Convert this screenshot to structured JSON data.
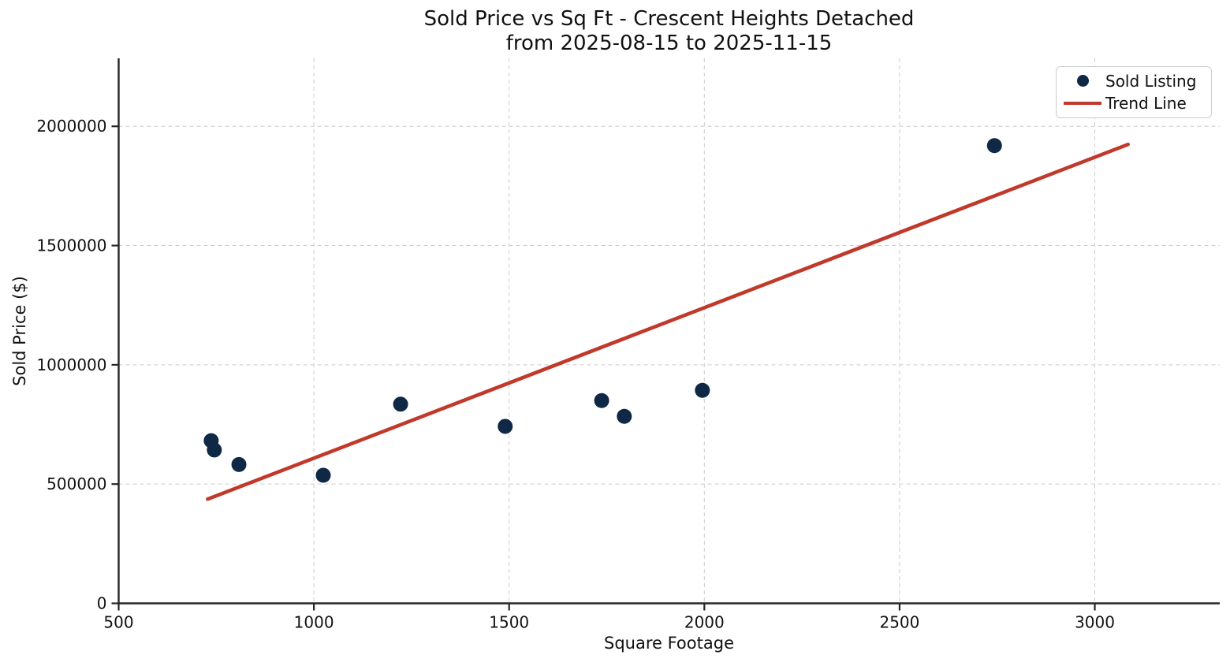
{
  "chart_data": {
    "type": "scatter",
    "title": "Sold Price vs Sq Ft - Crescent Heights Detached\nfrom 2025-08-15 to 2025-11-15",
    "title_line1": "Sold Price vs Sq Ft - Crescent Heights Detached",
    "title_line2": "from 2025-08-15 to 2025-11-15",
    "xlabel": "Square Footage",
    "ylabel": "Sold Price ($)",
    "xlim": [
      500,
      3320
    ],
    "ylim": [
      0,
      2285000
    ],
    "xticks": [
      500,
      1000,
      1500,
      2000,
      2500,
      3000
    ],
    "xtick_labels": [
      "500",
      "1000",
      "1500",
      "2000",
      "2500",
      "3000"
    ],
    "yticks": [
      0,
      500000,
      1000000,
      1500000,
      2000000
    ],
    "ytick_labels": [
      "0",
      "500000",
      "1000000",
      "1500000",
      "2000000"
    ],
    "grid": true,
    "grid_style": "dashed",
    "legend_position": "upper right",
    "series": [
      {
        "name": "Sold Listing",
        "type": "scatter",
        "color": "#0e2845",
        "points": [
          [
            737,
            682000
          ],
          [
            745,
            643000
          ],
          [
            808,
            582000
          ],
          [
            1024,
            537000
          ],
          [
            1222,
            835000
          ],
          [
            1490,
            742000
          ],
          [
            1737,
            850000
          ],
          [
            1795,
            784000
          ],
          [
            1995,
            893000
          ],
          [
            2743,
            1919000
          ]
        ]
      },
      {
        "name": "Trend Line",
        "type": "line",
        "color": "#c0392b",
        "points": [
          [
            728,
            437000
          ],
          [
            3085,
            1924000
          ]
        ]
      }
    ],
    "colors": {
      "scatter": "#0e2845",
      "trend": "#c0392b",
      "axis": "#262626",
      "grid": "#cccccc",
      "text": "#111111",
      "background": "#ffffff"
    }
  }
}
